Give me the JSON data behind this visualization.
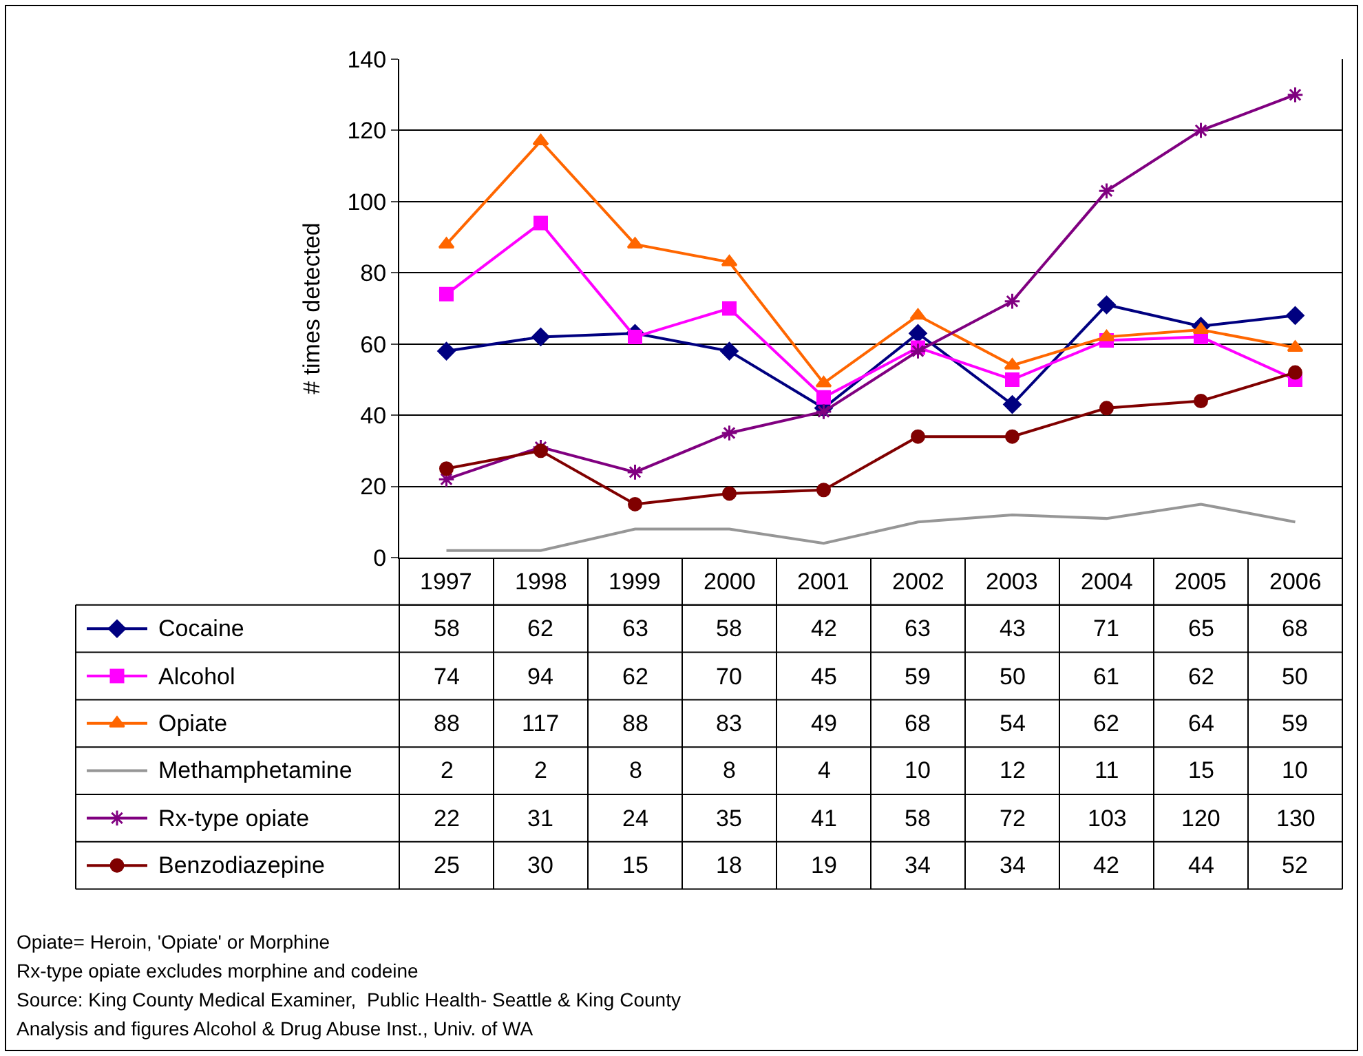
{
  "chart_data": {
    "type": "line",
    "ylabel": "# times detected",
    "categories": [
      "1997",
      "1998",
      "1999",
      "2000",
      "2001",
      "2002",
      "2003",
      "2004",
      "2005",
      "2006"
    ],
    "series": [
      {
        "name": "Cocaine",
        "color": "#000080",
        "marker": "diamond",
        "values": [
          58,
          62,
          63,
          58,
          42,
          63,
          43,
          71,
          65,
          68
        ]
      },
      {
        "name": "Alcohol",
        "color": "#ff00ff",
        "marker": "square",
        "values": [
          74,
          94,
          62,
          70,
          45,
          59,
          50,
          61,
          62,
          50
        ]
      },
      {
        "name": "Opiate",
        "color": "#ff6600",
        "marker": "triangle",
        "values": [
          88,
          117,
          88,
          83,
          49,
          68,
          54,
          62,
          64,
          59
        ]
      },
      {
        "name": "Methamphetamine",
        "color": "#969696",
        "marker": "none",
        "values": [
          2,
          2,
          8,
          8,
          4,
          10,
          12,
          11,
          15,
          10
        ]
      },
      {
        "name": "Rx-type opiate",
        "color": "#800080",
        "marker": "cross",
        "values": [
          22,
          31,
          24,
          35,
          41,
          58,
          72,
          103,
          120,
          130
        ]
      },
      {
        "name": "Benzodiazepine",
        "color": "#800000",
        "marker": "circle",
        "values": [
          25,
          30,
          15,
          18,
          19,
          34,
          34,
          42,
          44,
          52
        ]
      }
    ],
    "ylim": [
      0,
      140
    ],
    "yticks": [
      0,
      20,
      40,
      60,
      80,
      100,
      120,
      140
    ],
    "grid": "y",
    "legend": "bottom",
    "data_labels": true,
    "line_style": "solid",
    "annotations": [
      "Opiate= Heroin, 'Opiate' or Morphine",
      "Rx-type opiate excludes morphine and codeine",
      "Source: King County Medical Examiner,  Public Health- Seattle & King County",
      "Analysis and figures Alcohol & Drug Abuse Inst., Univ. of WA"
    ]
  }
}
